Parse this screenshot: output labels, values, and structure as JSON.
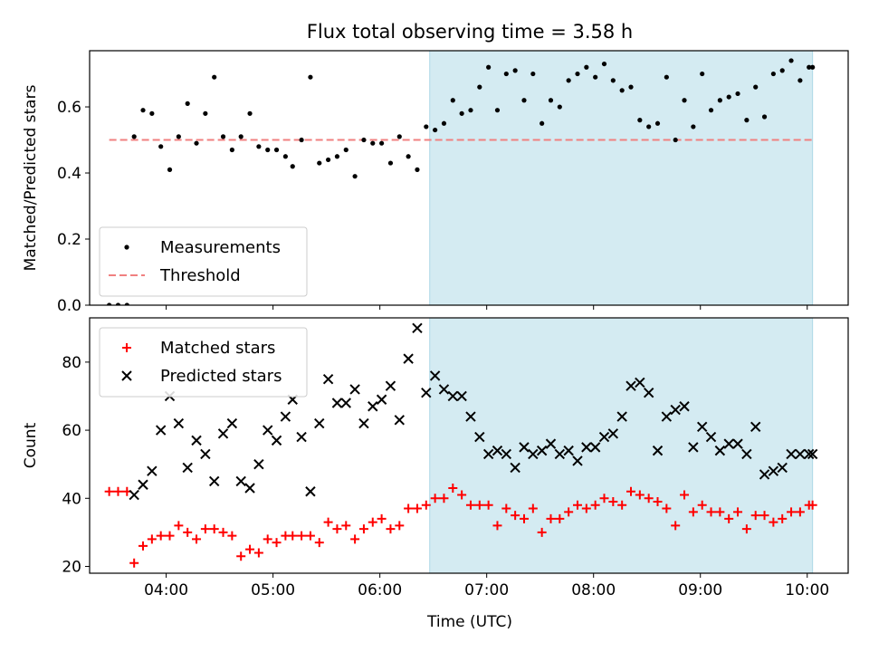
{
  "chart_data": {
    "title": "Flux total observing time = 3.58 h",
    "xlabel": "Time (UTC)",
    "x_unit": "hours UTC",
    "xlim": [
      "03:17",
      "10:23"
    ],
    "xticks": [
      {
        "t": "04:00",
        "label": "04:00"
      },
      {
        "t": "05:00",
        "label": "05:00"
      },
      {
        "t": "06:00",
        "label": "06:00"
      },
      {
        "t": "07:00",
        "label": "07:00"
      },
      {
        "t": "08:00",
        "label": "08:00"
      },
      {
        "t": "09:00",
        "label": "09:00"
      },
      {
        "t": "10:00",
        "label": "10:00"
      }
    ],
    "highlight_span": {
      "start": "06:28",
      "end": "10:03",
      "color": "#add8e6"
    },
    "panels": [
      {
        "type": "scatter",
        "ylabel": "Matched/Predicted stars",
        "ylim": [
          0,
          0.77
        ],
        "yticks": [
          "0.0",
          "0.2",
          "0.4",
          "0.6"
        ],
        "legend_position": "lower-left",
        "threshold": {
          "name": "Threshold",
          "value": 0.5,
          "color": "#f08080"
        },
        "series": [
          {
            "name": "Measurements",
            "marker": "dot",
            "color": "#000000",
            "x": [
              "03:28",
              "03:33",
              "03:38",
              "03:42",
              "03:47",
              "03:52",
              "03:57",
              "04:02",
              "04:07",
              "04:12",
              "04:17",
              "04:22",
              "04:27",
              "04:32",
              "04:37",
              "04:42",
              "04:47",
              "04:52",
              "04:57",
              "05:02",
              "05:07",
              "05:11",
              "05:16",
              "05:21",
              "05:26",
              "05:31",
              "05:36",
              "05:41",
              "05:46",
              "05:51",
              "05:56",
              "06:01",
              "06:06",
              "06:11",
              "06:16",
              "06:21",
              "06:26",
              "06:31",
              "06:36",
              "06:41",
              "06:46",
              "06:51",
              "06:56",
              "07:01",
              "07:06",
              "07:11",
              "07:16",
              "07:21",
              "07:26",
              "07:31",
              "07:36",
              "07:41",
              "07:46",
              "07:51",
              "07:56",
              "08:01",
              "08:06",
              "08:11",
              "08:16",
              "08:21",
              "08:26",
              "08:31",
              "08:36",
              "08:41",
              "08:46",
              "08:51",
              "08:56",
              "09:01",
              "09:06",
              "09:11",
              "09:16",
              "09:21",
              "09:26",
              "09:31",
              "09:36",
              "09:41",
              "09:46",
              "09:51",
              "09:56",
              "10:01",
              "10:03"
            ],
            "y": [
              0.0,
              0.0,
              0.0,
              0.51,
              0.59,
              0.58,
              0.48,
              0.41,
              0.51,
              0.61,
              0.49,
              0.58,
              0.69,
              0.51,
              0.47,
              0.51,
              0.58,
              0.48,
              0.47,
              0.47,
              0.45,
              0.42,
              0.5,
              0.69,
              0.43,
              0.44,
              0.45,
              0.47,
              0.39,
              0.5,
              0.49,
              0.49,
              0.43,
              0.51,
              0.45,
              0.41,
              0.54,
              0.53,
              0.55,
              0.62,
              0.58,
              0.59,
              0.66,
              0.72,
              0.59,
              0.7,
              0.71,
              0.62,
              0.7,
              0.55,
              0.62,
              0.6,
              0.68,
              0.7,
              0.72,
              0.69,
              0.73,
              0.68,
              0.65,
              0.66,
              0.56,
              0.54,
              0.55,
              0.69,
              0.5,
              0.62,
              0.54,
              0.7,
              0.59,
              0.62,
              0.63,
              0.64,
              0.56,
              0.66,
              0.57,
              0.7,
              0.71,
              0.74,
              0.68,
              0.72,
              0.72
            ]
          }
        ]
      },
      {
        "type": "scatter",
        "ylabel": "Count",
        "ylim": [
          18,
          93
        ],
        "yticks": [
          "20",
          "40",
          "60",
          "80"
        ],
        "legend_position": "upper-left",
        "series": [
          {
            "name": "Matched stars",
            "marker": "plus",
            "color": "#ff0000",
            "x": [
              "03:28",
              "03:33",
              "03:38",
              "03:42",
              "03:47",
              "03:52",
              "03:57",
              "04:02",
              "04:07",
              "04:12",
              "04:17",
              "04:22",
              "04:27",
              "04:32",
              "04:37",
              "04:42",
              "04:47",
              "04:52",
              "04:57",
              "05:02",
              "05:07",
              "05:11",
              "05:16",
              "05:21",
              "05:26",
              "05:31",
              "05:36",
              "05:41",
              "05:46",
              "05:51",
              "05:56",
              "06:01",
              "06:06",
              "06:11",
              "06:16",
              "06:21",
              "06:26",
              "06:31",
              "06:36",
              "06:41",
              "06:46",
              "06:51",
              "06:56",
              "07:01",
              "07:06",
              "07:11",
              "07:16",
              "07:21",
              "07:26",
              "07:31",
              "07:36",
              "07:41",
              "07:46",
              "07:51",
              "07:56",
              "08:01",
              "08:06",
              "08:11",
              "08:16",
              "08:21",
              "08:26",
              "08:31",
              "08:36",
              "08:41",
              "08:46",
              "08:51",
              "08:56",
              "09:01",
              "09:06",
              "09:11",
              "09:16",
              "09:21",
              "09:26",
              "09:31",
              "09:36",
              "09:41",
              "09:46",
              "09:51",
              "09:56",
              "10:01",
              "10:03"
            ],
            "y": [
              42,
              42,
              42,
              21,
              26,
              28,
              29,
              29,
              32,
              30,
              28,
              31,
              31,
              30,
              29,
              23,
              25,
              24,
              28,
              27,
              29,
              29,
              29,
              29,
              27,
              33,
              31,
              32,
              28,
              31,
              33,
              34,
              31,
              32,
              37,
              37,
              38,
              40,
              40,
              43,
              41,
              38,
              38,
              38,
              32,
              37,
              35,
              34,
              37,
              30,
              34,
              34,
              36,
              38,
              37,
              38,
              40,
              39,
              38,
              42,
              41,
              40,
              39,
              37,
              32,
              41,
              36,
              38,
              36,
              36,
              34,
              36,
              31,
              35,
              35,
              33,
              34,
              36,
              36,
              38,
              38
            ]
          },
          {
            "name": "Predicted stars",
            "marker": "x",
            "color": "#000000",
            "x": [
              "03:42",
              "03:47",
              "03:52",
              "03:57",
              "04:02",
              "04:07",
              "04:12",
              "04:17",
              "04:22",
              "04:27",
              "04:32",
              "04:37",
              "04:42",
              "04:47",
              "04:52",
              "04:57",
              "05:02",
              "05:07",
              "05:11",
              "05:16",
              "05:21",
              "05:26",
              "05:31",
              "05:36",
              "05:41",
              "05:46",
              "05:51",
              "05:56",
              "06:01",
              "06:06",
              "06:11",
              "06:16",
              "06:21",
              "06:26",
              "06:31",
              "06:36",
              "06:41",
              "06:46",
              "06:51",
              "06:56",
              "07:01",
              "07:06",
              "07:11",
              "07:16",
              "07:21",
              "07:26",
              "07:31",
              "07:36",
              "07:41",
              "07:46",
              "07:51",
              "07:56",
              "08:01",
              "08:06",
              "08:11",
              "08:16",
              "08:21",
              "08:26",
              "08:31",
              "08:36",
              "08:41",
              "08:46",
              "08:51",
              "08:56",
              "09:01",
              "09:06",
              "09:11",
              "09:16",
              "09:21",
              "09:26",
              "09:31",
              "09:36",
              "09:41",
              "09:46",
              "09:51",
              "09:56",
              "10:01",
              "10:03"
            ],
            "y": [
              41,
              44,
              48,
              60,
              70,
              62,
              49,
              57,
              53,
              45,
              59,
              62,
              45,
              43,
              50,
              60,
              57,
              64,
              69,
              58,
              42,
              62,
              75,
              68,
              68,
              72,
              62,
              67,
              69,
              73,
              63,
              81,
              90,
              71,
              76,
              72,
              70,
              70,
              64,
              58,
              53,
              54,
              53,
              49,
              55,
              53,
              54,
              56,
              53,
              54,
              51,
              55,
              55,
              58,
              59,
              64,
              73,
              74,
              71,
              54,
              64,
              66,
              67,
              55,
              61,
              58,
              54,
              56,
              56,
              53,
              61,
              47,
              48,
              49,
              53,
              53,
              53,
              53
            ]
          }
        ]
      }
    ]
  }
}
